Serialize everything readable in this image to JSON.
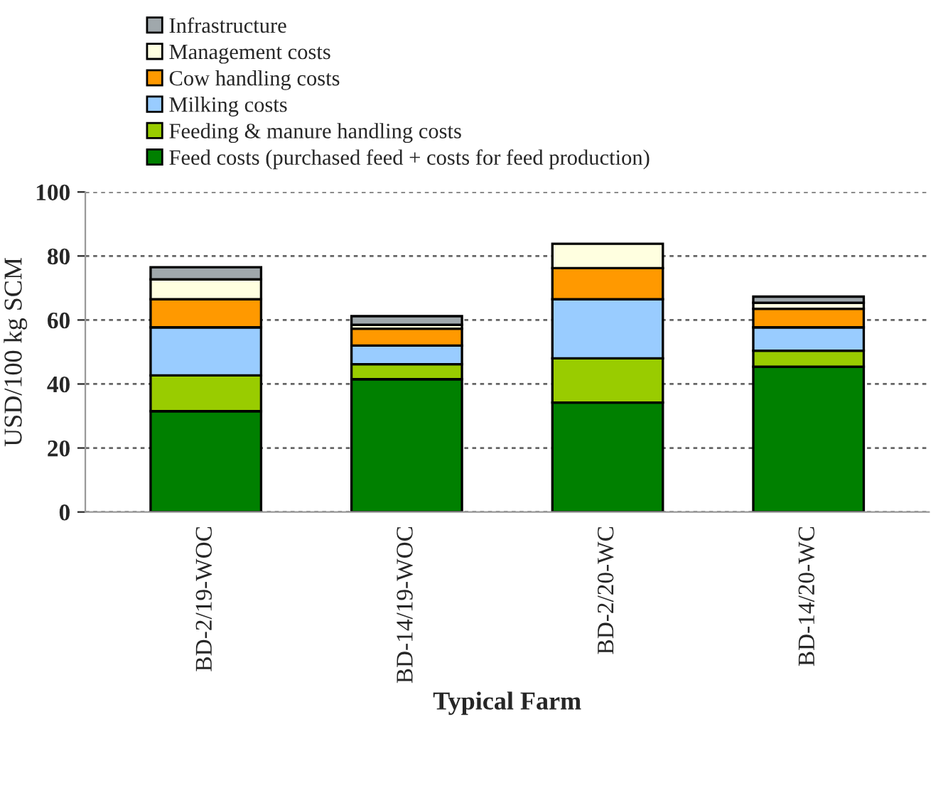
{
  "chart_data": {
    "type": "bar",
    "stacked": true,
    "xlabel": "Typical Farm",
    "ylabel": "USD/100 kg SCM",
    "categories": [
      "BD-2/19-WOC",
      "BD-14/19-WOC",
      "BD-2/20-WC",
      "BD-14/20-WC"
    ],
    "series": [
      {
        "name": "Feed costs (purchased feed + costs for feed production)",
        "color": "#008000",
        "values": [
          31.5,
          41.5,
          34.2,
          45.4
        ]
      },
      {
        "name": "Feeding & manure handling costs",
        "color": "#99cc00",
        "values": [
          11.2,
          4.7,
          13.8,
          5.0
        ]
      },
      {
        "name": "Milking costs",
        "color": "#99ccff",
        "values": [
          15.0,
          5.8,
          18.5,
          7.3
        ]
      },
      {
        "name": "Cow handling costs",
        "color": "#ff9900",
        "values": [
          8.8,
          5.3,
          9.7,
          5.8
        ]
      },
      {
        "name": "Management costs",
        "color": "#ffffe0",
        "values": [
          6.2,
          1.2,
          7.6,
          1.9
        ]
      },
      {
        "name": "Infrastructure",
        "color": "#a0a8ac",
        "values": [
          3.8,
          2.7,
          null,
          1.9
        ]
      }
    ],
    "ylim": [
      0,
      100
    ],
    "yticks": [
      0,
      20,
      40,
      60,
      80,
      100
    ],
    "grid": "y",
    "legend": "top"
  }
}
